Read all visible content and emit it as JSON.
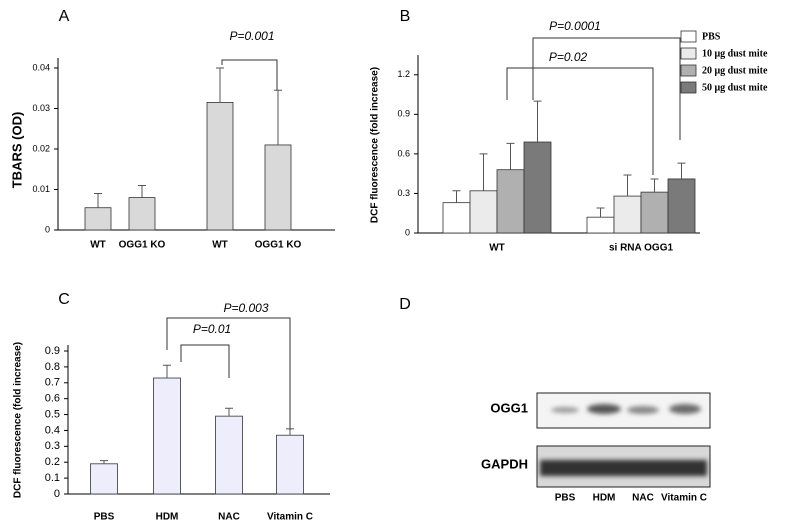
{
  "chart_data": [
    {
      "panel": "A",
      "type": "bar",
      "ylabel": "TBARS (OD)",
      "categories": [
        "WT",
        "OGG1 KO",
        "WT",
        "OGG1 KO"
      ],
      "values": [
        0.0055,
        0.008,
        0.0315,
        0.021
      ],
      "errors": [
        0.0035,
        0.003,
        0.0085,
        0.0135
      ],
      "color": "#d9d9d9",
      "ylim": [
        0,
        0.04
      ],
      "yticks": [
        0,
        0.01,
        0.02,
        0.03,
        0.04
      ],
      "annotations": [
        "P=0.001"
      ]
    },
    {
      "panel": "B",
      "type": "bar",
      "ylabel": "DCF fluorescence (fold increase)",
      "categories": [
        "WT",
        "si RNA OGG1"
      ],
      "series": [
        {
          "name": "PBS",
          "color": "#ffffff",
          "values": [
            0.23,
            0.12
          ],
          "errors": [
            0.09,
            0.07
          ]
        },
        {
          "name": "10 μg dust mite",
          "color": "#ebebeb",
          "values": [
            0.32,
            0.28
          ],
          "errors": [
            0.28,
            0.16
          ]
        },
        {
          "name": "20 μg dust mite",
          "color": "#b0b0b0",
          "values": [
            0.48,
            0.31
          ],
          "errors": [
            0.2,
            0.1
          ]
        },
        {
          "name": "50 μg dust mite",
          "color": "#7a7a7a",
          "values": [
            0.69,
            0.41
          ],
          "errors": [
            0.31,
            0.12
          ]
        }
      ],
      "ylim": [
        0,
        1.35
      ],
      "yticks": [
        0,
        0.3,
        0.6,
        0.9,
        1.2
      ],
      "legend": "upper right",
      "annotations": [
        "P=0.0001",
        "P=0.02"
      ]
    },
    {
      "panel": "C",
      "type": "bar",
      "ylabel": "DCF fluorescence (fold increase)",
      "categories": [
        "PBS",
        "HDM",
        "NAC",
        "Vitamin C"
      ],
      "values": [
        0.19,
        0.73,
        0.49,
        0.37
      ],
      "errors": [
        0.02,
        0.08,
        0.05,
        0.04
      ],
      "color": "#ededfc",
      "ylim": [
        0,
        0.9
      ],
      "yticks": [
        0,
        0.1,
        0.2,
        0.3,
        0.4,
        0.5,
        0.6,
        0.7,
        0.8,
        0.9
      ],
      "annotations": [
        "P=0.01",
        "P=0.003"
      ]
    }
  ],
  "blot": {
    "panel": "D",
    "rows": [
      "OGG1",
      "GAPDH"
    ],
    "lanes": [
      "PBS",
      "HDM",
      "NAC",
      "Vitamin C"
    ]
  }
}
